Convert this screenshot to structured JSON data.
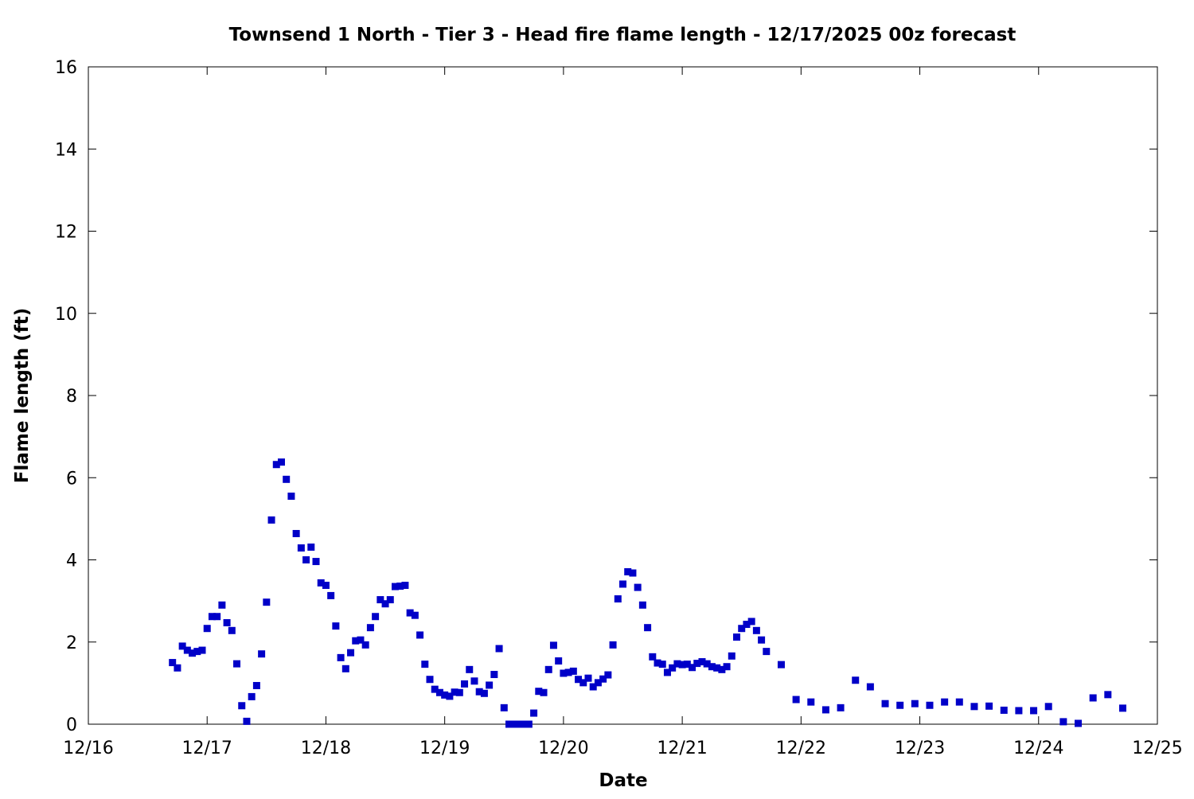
{
  "chart_data": {
    "type": "scatter",
    "title": "Townsend 1 North - Tier 3 - Head fire flame length - 12/17/2025 00z forecast",
    "xlabel": "Date",
    "ylabel": "Flame length (ft)",
    "xlim": [
      "12/16 00:00",
      "12/25 00:00"
    ],
    "ylim": [
      0,
      16
    ],
    "grid": false,
    "legend": "none",
    "marker_color": "#0000c8",
    "xticks": [
      "12/16",
      "12/17",
      "12/18",
      "12/19",
      "12/20",
      "12/21",
      "12/22",
      "12/23",
      "12/24",
      "12/25"
    ],
    "yticks": [
      "0",
      "2",
      "4",
      "6",
      "8",
      "10",
      "12",
      "14",
      "16"
    ],
    "series": [
      {
        "x": [
          "12/16 17:00",
          "12/16 18:00",
          "12/16 19:00",
          "12/16 20:00",
          "12/16 21:00",
          "12/16 22:00",
          "12/16 23:00",
          "12/17 00:00",
          "12/17 01:00",
          "12/17 02:00",
          "12/17 03:00",
          "12/17 04:00",
          "12/17 05:00",
          "12/17 06:00",
          "12/17 07:00",
          "12/17 08:00",
          "12/17 09:00",
          "12/17 10:00",
          "12/17 11:00",
          "12/17 12:00",
          "12/17 13:00",
          "12/17 14:00",
          "12/17 15:00",
          "12/17 16:00",
          "12/17 17:00",
          "12/17 18:00",
          "12/17 19:00",
          "12/17 20:00",
          "12/17 21:00",
          "12/17 22:00",
          "12/17 23:00",
          "12/18 00:00",
          "12/18 01:00",
          "12/18 02:00",
          "12/18 03:00",
          "12/18 04:00",
          "12/18 05:00",
          "12/18 06:00",
          "12/18 07:00",
          "12/18 08:00",
          "12/18 09:00",
          "12/18 10:00",
          "12/18 11:00",
          "12/18 12:00",
          "12/18 13:00",
          "12/18 14:00",
          "12/18 15:00",
          "12/18 16:00",
          "12/18 17:00",
          "12/18 18:00",
          "12/18 19:00",
          "12/18 20:00",
          "12/18 21:00",
          "12/18 22:00",
          "12/18 23:00",
          "12/19 00:00",
          "12/19 01:00",
          "12/19 02:00",
          "12/19 03:00",
          "12/19 04:00",
          "12/19 05:00",
          "12/19 06:00",
          "12/19 07:00",
          "12/19 08:00",
          "12/19 09:00",
          "12/19 10:00",
          "12/19 11:00",
          "12/19 12:00",
          "12/19 13:00",
          "12/19 14:00",
          "12/19 15:00",
          "12/19 16:00",
          "12/19 17:00",
          "12/19 18:00",
          "12/19 19:00",
          "12/19 20:00",
          "12/19 21:00",
          "12/19 22:00",
          "12/19 23:00",
          "12/20 00:00",
          "12/20 01:00",
          "12/20 02:00",
          "12/20 03:00",
          "12/20 04:00",
          "12/20 05:00",
          "12/20 06:00",
          "12/20 07:00",
          "12/20 08:00",
          "12/20 09:00",
          "12/20 10:00",
          "12/20 11:00",
          "12/20 12:00",
          "12/20 13:00",
          "12/20 14:00",
          "12/20 15:00",
          "12/20 16:00",
          "12/20 17:00",
          "12/20 18:00",
          "12/20 19:00",
          "12/20 20:00",
          "12/20 21:00",
          "12/20 22:00",
          "12/20 23:00",
          "12/21 00:00",
          "12/21 01:00",
          "12/21 02:00",
          "12/21 03:00",
          "12/21 04:00",
          "12/21 05:00",
          "12/21 06:00",
          "12/21 07:00",
          "12/21 08:00",
          "12/21 09:00",
          "12/21 10:00",
          "12/21 11:00",
          "12/21 12:00",
          "12/21 13:00",
          "12/21 14:00",
          "12/21 15:00",
          "12/21 16:00",
          "12/21 17:00",
          "12/21 20:00",
          "12/21 23:00",
          "12/22 02:00",
          "12/22 05:00",
          "12/22 08:00",
          "12/22 11:00",
          "12/22 14:00",
          "12/22 17:00",
          "12/22 20:00",
          "12/22 23:00",
          "12/23 02:00",
          "12/23 05:00",
          "12/23 08:00",
          "12/23 11:00",
          "12/23 14:00",
          "12/23 17:00",
          "12/23 20:00",
          "12/23 23:00",
          "12/24 02:00",
          "12/24 05:00",
          "12/24 08:00",
          "12/24 11:00",
          "12/24 14:00",
          "12/24 17:00"
        ],
        "y": [
          1.5,
          1.37,
          1.9,
          1.8,
          1.73,
          1.77,
          1.8,
          2.33,
          2.62,
          2.62,
          2.9,
          2.47,
          2.28,
          1.47,
          0.45,
          0.07,
          0.67,
          0.94,
          1.71,
          2.97,
          4.97,
          6.32,
          6.38,
          5.96,
          5.55,
          4.64,
          4.29,
          4.0,
          4.31,
          3.96,
          3.44,
          3.38,
          3.13,
          2.39,
          1.62,
          1.35,
          1.74,
          2.03,
          2.05,
          1.93,
          2.35,
          2.62,
          3.03,
          2.93,
          3.03,
          3.35,
          3.36,
          3.38,
          2.71,
          2.65,
          2.17,
          1.46,
          1.09,
          0.85,
          0.77,
          0.71,
          0.68,
          0.78,
          0.77,
          0.98,
          1.33,
          1.05,
          0.79,
          0.75,
          0.95,
          1.21,
          1.84,
          0.4,
          0,
          0,
          0,
          0,
          0,
          0.27,
          0.8,
          0.77,
          1.33,
          1.92,
          1.54,
          1.24,
          1.26,
          1.29,
          1.09,
          1.01,
          1.12,
          0.91,
          1.01,
          1.1,
          1.2,
          1.93,
          3.05,
          3.41,
          3.71,
          3.68,
          3.33,
          2.9,
          2.35,
          1.64,
          1.49,
          1.46,
          1.26,
          1.37,
          1.47,
          1.45,
          1.46,
          1.38,
          1.48,
          1.52,
          1.47,
          1.4,
          1.37,
          1.33,
          1.4,
          1.66,
          2.12,
          2.33,
          2.43,
          2.5,
          2.28,
          2.05,
          1.77,
          1.45,
          0.6,
          0.54,
          0.35,
          0.4,
          1.07,
          0.91,
          0.5,
          0.46,
          0.5,
          0.46,
          0.54,
          0.54,
          0.43,
          0.44,
          0.34,
          0.33,
          0.33,
          0.43,
          0.06,
          0.02,
          0.64,
          0.72,
          0.39
        ]
      }
    ]
  }
}
